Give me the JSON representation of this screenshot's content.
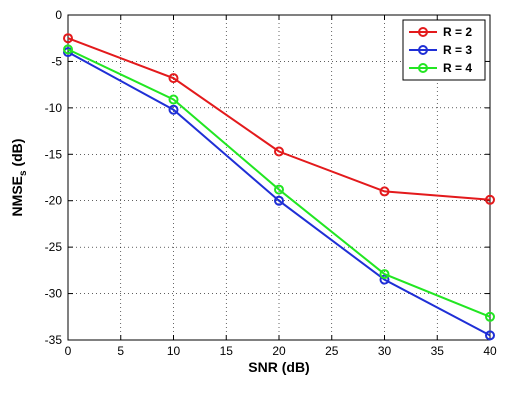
{
  "chart_data": {
    "type": "line",
    "xlabel": "SNR (dB)",
    "ylabel_main": "NMSE",
    "ylabel_sub": "s",
    "ylabel_unit": " (dB)",
    "xlim": [
      0,
      40
    ],
    "ylim": [
      -35,
      0
    ],
    "xticks": [
      0,
      5,
      10,
      15,
      20,
      25,
      30,
      35,
      40
    ],
    "yticks": [
      0,
      -5,
      -10,
      -15,
      -20,
      -25,
      -30,
      -35
    ],
    "grid": true,
    "legend_position": "top-right",
    "x": [
      0,
      10,
      20,
      30,
      40
    ],
    "series": [
      {
        "name": "R = 2",
        "color": "#e31a1c",
        "values": [
          -2.5,
          -6.8,
          -14.7,
          -19.0,
          -19.9
        ]
      },
      {
        "name": "R = 3",
        "color": "#1f2fd6",
        "values": [
          -4.0,
          -10.2,
          -20.0,
          -28.5,
          -34.5
        ]
      },
      {
        "name": "R = 4",
        "color": "#22e622",
        "values": [
          -3.7,
          -9.1,
          -18.8,
          -27.9,
          -32.5
        ]
      }
    ]
  }
}
